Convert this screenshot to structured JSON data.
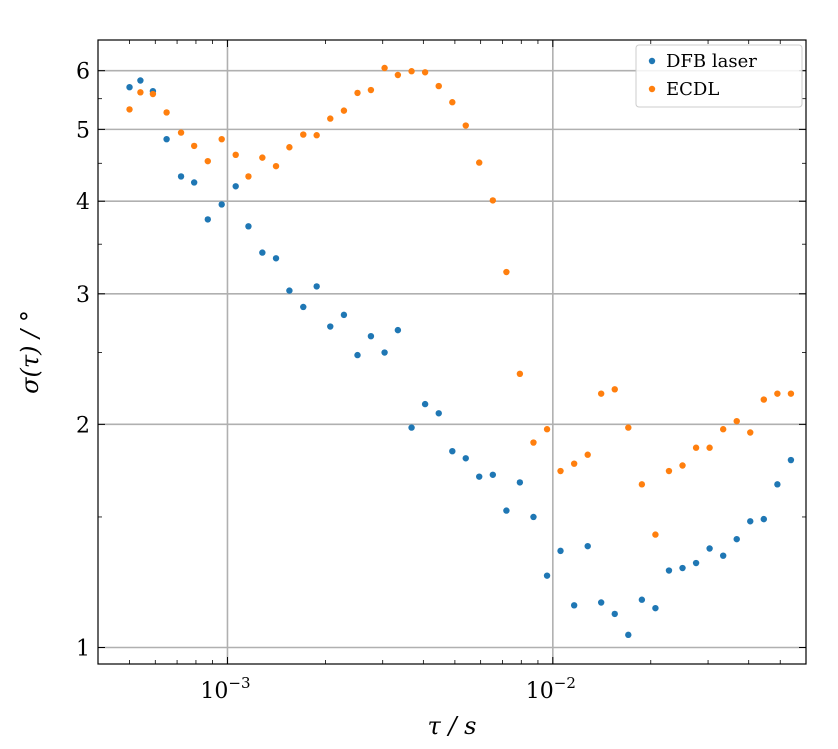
{
  "chart_data": {
    "type": "scatter",
    "xscale": "log",
    "yscale": "log",
    "xlim": [
      0.0004,
      0.06
    ],
    "ylim": [
      0.95,
      6.6
    ],
    "grid": true,
    "legend_position": "top-right",
    "xlabel": "τ / s",
    "ylabel": "σ(τ) / °",
    "xticks": [
      {
        "value": 0.001,
        "base": "10",
        "exp": "−3"
      },
      {
        "value": 0.01,
        "base": "10",
        "exp": "−2"
      }
    ],
    "yticks": [
      {
        "value": 1,
        "label": "1"
      },
      {
        "value": 2,
        "label": "2"
      },
      {
        "value": 3,
        "label": "3"
      },
      {
        "value": 4,
        "label": "4"
      },
      {
        "value": 5,
        "label": "5"
      },
      {
        "value": 6,
        "label": "6"
      }
    ],
    "series": [
      {
        "name": "DFB laser",
        "color": "#1f77b4",
        "points": [
          [
            0.0005,
            5.7
          ],
          [
            0.00054,
            5.82
          ],
          [
            0.00059,
            5.63
          ],
          [
            0.00065,
            4.85
          ],
          [
            0.00072,
            4.32
          ],
          [
            0.00079,
            4.24
          ],
          [
            0.00087,
            3.78
          ],
          [
            0.00096,
            3.96
          ],
          [
            0.00106,
            4.19
          ],
          [
            0.00116,
            3.7
          ],
          [
            0.00128,
            3.41
          ],
          [
            0.00141,
            3.35
          ],
          [
            0.00155,
            3.03
          ],
          [
            0.00171,
            2.88
          ],
          [
            0.00188,
            3.07
          ],
          [
            0.00207,
            2.71
          ],
          [
            0.00228,
            2.81
          ],
          [
            0.00251,
            2.48
          ],
          [
            0.00276,
            2.63
          ],
          [
            0.00304,
            2.5
          ],
          [
            0.00334,
            2.68
          ],
          [
            0.00368,
            1.98
          ],
          [
            0.00405,
            2.13
          ],
          [
            0.00446,
            2.07
          ],
          [
            0.00491,
            1.84
          ],
          [
            0.0054,
            1.8
          ],
          [
            0.00594,
            1.7
          ],
          [
            0.00654,
            1.71
          ],
          [
            0.0072,
            1.53
          ],
          [
            0.00792,
            1.67
          ],
          [
            0.00872,
            1.5
          ],
          [
            0.0096,
            1.25
          ],
          [
            0.01056,
            1.35
          ],
          [
            0.01163,
            1.14
          ],
          [
            0.0128,
            1.37
          ],
          [
            0.01408,
            1.15
          ],
          [
            0.0155,
            1.11
          ],
          [
            0.01706,
            1.04
          ],
          [
            0.01878,
            1.16
          ],
          [
            0.02067,
            1.13
          ],
          [
            0.02275,
            1.27
          ],
          [
            0.02504,
            1.28
          ],
          [
            0.02756,
            1.3
          ],
          [
            0.03033,
            1.36
          ],
          [
            0.03339,
            1.33
          ],
          [
            0.03675,
            1.4
          ],
          [
            0.04044,
            1.48
          ],
          [
            0.04451,
            1.49
          ],
          [
            0.049,
            1.66
          ],
          [
            0.05393,
            1.79
          ]
        ]
      },
      {
        "name": "ECDL",
        "color": "#ff7f0e",
        "points": [
          [
            0.0005,
            5.32
          ],
          [
            0.00054,
            5.61
          ],
          [
            0.00059,
            5.58
          ],
          [
            0.00065,
            5.27
          ],
          [
            0.00072,
            4.95
          ],
          [
            0.00079,
            4.75
          ],
          [
            0.00087,
            4.53
          ],
          [
            0.00096,
            4.85
          ],
          [
            0.00106,
            4.62
          ],
          [
            0.00116,
            4.32
          ],
          [
            0.00128,
            4.58
          ],
          [
            0.00141,
            4.46
          ],
          [
            0.00155,
            4.73
          ],
          [
            0.00171,
            4.92
          ],
          [
            0.00188,
            4.91
          ],
          [
            0.00207,
            5.17
          ],
          [
            0.00228,
            5.3
          ],
          [
            0.00251,
            5.6
          ],
          [
            0.00276,
            5.65
          ],
          [
            0.00304,
            6.05
          ],
          [
            0.00334,
            5.92
          ],
          [
            0.00368,
            5.99
          ],
          [
            0.00405,
            5.97
          ],
          [
            0.00446,
            5.72
          ],
          [
            0.00491,
            5.44
          ],
          [
            0.0054,
            5.06
          ],
          [
            0.00594,
            4.51
          ],
          [
            0.00654,
            4.01
          ],
          [
            0.0072,
            3.21
          ],
          [
            0.00792,
            2.34
          ],
          [
            0.00872,
            1.89
          ],
          [
            0.0096,
            1.97
          ],
          [
            0.01056,
            1.73
          ],
          [
            0.01163,
            1.77
          ],
          [
            0.0128,
            1.82
          ],
          [
            0.01408,
            2.2
          ],
          [
            0.0155,
            2.23
          ],
          [
            0.01706,
            1.98
          ],
          [
            0.01878,
            1.66
          ],
          [
            0.02067,
            1.42
          ],
          [
            0.02275,
            1.73
          ],
          [
            0.02504,
            1.76
          ],
          [
            0.02756,
            1.86
          ],
          [
            0.03033,
            1.86
          ],
          [
            0.03339,
            1.97
          ],
          [
            0.03675,
            2.02
          ],
          [
            0.04044,
            1.95
          ],
          [
            0.04451,
            2.16
          ],
          [
            0.049,
            2.2
          ],
          [
            0.05393,
            2.2
          ]
        ]
      }
    ]
  }
}
